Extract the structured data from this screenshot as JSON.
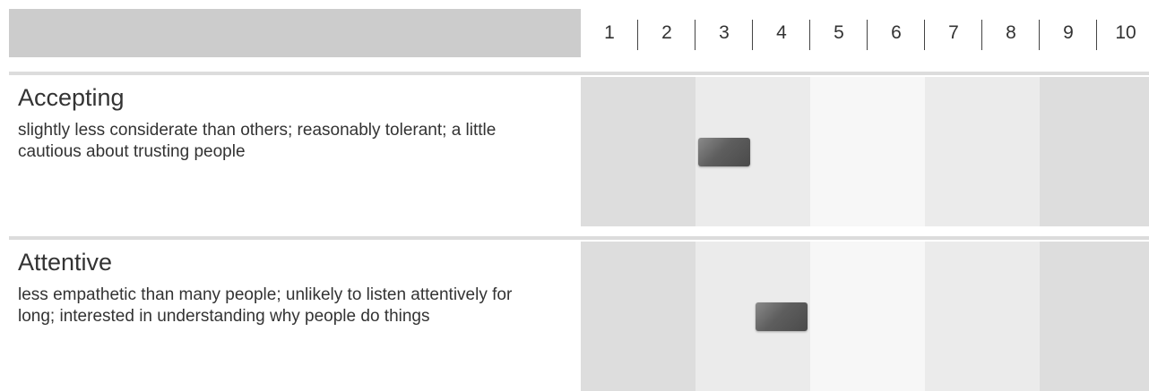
{
  "scale": [
    1,
    2,
    3,
    4,
    5,
    6,
    7,
    8,
    9,
    10
  ],
  "rows": [
    {
      "title": "Accepting",
      "description": "slightly less considerate than others; reasonably tolerant; a little cautious about trusting people",
      "score": 3
    },
    {
      "title": "Attentive",
      "description": "less empathetic than many people; unlikely to listen attentively for long; interested in understanding why people do things",
      "score": 4
    }
  ]
}
